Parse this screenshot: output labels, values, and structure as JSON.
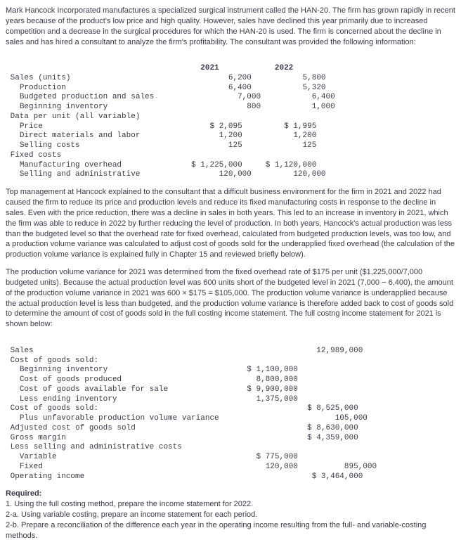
{
  "intro": "Mark Hancock Incorporated manufactures a specialized surgical instrument called the HAN-20. The firm has grown rapidly in recent years because of the product's low price and high quality. However, sales have declined this year primarily due to increased competition and a decrease in the surgical procedures for which the HAN-20 is used. The firm is concerned about the decline in sales and has hired a consultant to analyze the firm's profitability. The consultant was provided the following information:",
  "table1": {
    "hdr_y1": "2021",
    "hdr_y2": "2022",
    "rows": {
      "sales_units": {
        "l": "Sales (units)",
        "a": "6,200",
        "b": "5,800"
      },
      "production": {
        "l": "Production",
        "a": "6,400",
        "b": "5,320"
      },
      "budgeted": {
        "l": "Budgeted production and sales",
        "a": "7,000",
        "b": "6,400"
      },
      "beg_inv": {
        "l": "Beginning inventory",
        "a": "800",
        "b": "1,000"
      },
      "data_hdr": {
        "l": "Data per unit (all variable)"
      },
      "price": {
        "l": "Price",
        "a": "$ 2,095",
        "b": "$ 1,995"
      },
      "dml": {
        "l": "Direct materials and labor",
        "a": "1,200",
        "b": "1,200"
      },
      "sell_c": {
        "l": "Selling costs",
        "a": "125",
        "b": "125"
      },
      "fixed_hdr": {
        "l": "Fixed costs"
      },
      "moh": {
        "l": "Manufacturing overhead",
        "a": "$ 1,225,000",
        "b": "$ 1,120,000"
      },
      "sga": {
        "l": "Selling and administrative",
        "a": "120,000",
        "b": "120,000"
      }
    }
  },
  "para2": "Top management at Hancock explained to the consultant that a difficult business environment for the firm in 2021 and 2022 had caused the firm to reduce its price and production levels and reduce its fixed manufacturing costs in response to the decline in sales. Even with the price reduction, there was a decline in sales in both years. This led to an increase in inventory in 2021, which the firm was able to reduce in 2022 by further reducing the level of production. In both years, Hancock's actual production was less than the budgeted level so that the overhead rate for fixed overhead, calculated from budgeted production levels, was too low, and a production volume variance was calculated to adjust cost of goods sold for the underapplied fixed overhead (the calculation of the production volume variance is explained fully in Chapter 15 and reviewed briefly below).",
  "para3": "The production volume variance for 2021 was determined from the fixed overhead rate of $175 per unit ($1,225,000/7,000 budgeted units). Because the actual production level was 600 units short of the budgeted level in 2021 (7,000 − 6,400), the amount of the production volume variance in 2021 was 600 × $175 = $105,000. The production volume variance is underapplied because the actual production level is less than budgeted, and the production volume variance is therefore added back to cost of goods sold to determine the amount of cost of goods sold in the full costing income statement. The full costng income statement for 2021 is shown below:",
  "stmt": {
    "sales": {
      "l": "Sales",
      "c2": "12,989,000"
    },
    "cogs_hdr": {
      "l": "Cost of goods sold:"
    },
    "beg_inv": {
      "l": "Beginning inventory",
      "c1": "$ 1,100,000"
    },
    "cogp": {
      "l": "Cost of goods produced",
      "c1": "8,800,000"
    },
    "avail": {
      "l": "Cost of goods available for sale",
      "c1": "$ 9,900,000"
    },
    "less_end": {
      "l": "Less ending inventory",
      "c1": "1,375,000"
    },
    "cogs_sold": {
      "l": "Cost of goods sold:",
      "c2": "$ 8,525,000"
    },
    "pvv": {
      "l": "Plus unfavorable production volume variance",
      "c2": "105,000"
    },
    "adj_cogs": {
      "l": "Adjusted cost of goods sold",
      "c2": "$ 8,630,000"
    },
    "gm": {
      "l": "Gross margin",
      "c2": "$ 4,359,000"
    },
    "less_sga": {
      "l": "Less selling and administrative costs"
    },
    "var": {
      "l": "Variable",
      "c1": "$ 775,000"
    },
    "fix": {
      "l": "Fixed",
      "c1": "120,000",
      "c2": "895,000"
    },
    "opinc": {
      "l": "Operating income",
      "c2": "$ 3,464,000"
    }
  },
  "req_hdr": "Required:",
  "req1": "1. Using the full costing method, prepare the income statement for 2022.",
  "req2a": "2-a. Using variable costing, prepare an income statement for each period.",
  "req2b": "2-b. Prepare a reconciliation of the difference each year in the operating income resulting from the full- and variable-costing methods."
}
